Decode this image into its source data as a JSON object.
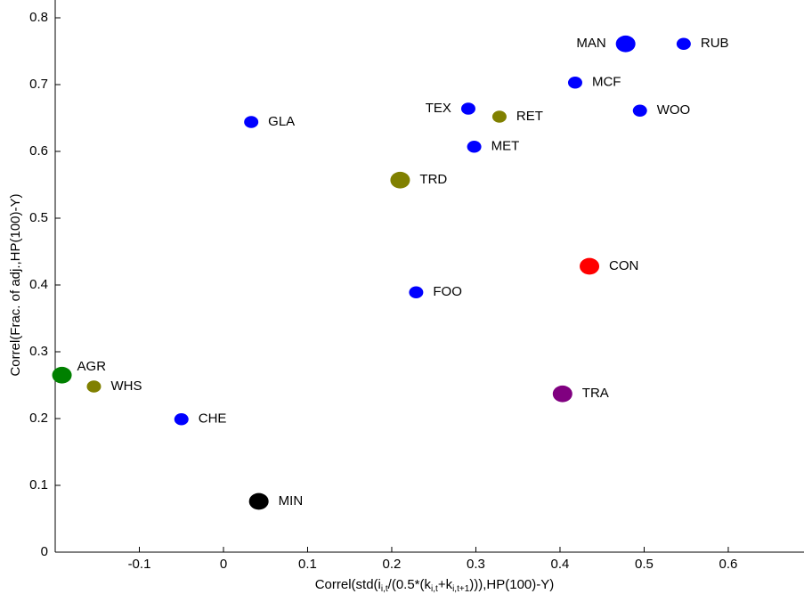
{
  "chart_data": {
    "type": "scatter",
    "ylabel": "Correl(Frac. of adj.,HP(100)-Y)",
    "xlabel_parts": [
      "Correl(std(i",
      "i,t",
      "/(0.5*(k",
      "i,t",
      "+k",
      "i,t+1",
      "))),HP(100)-Y)"
    ],
    "xlim": [
      -0.2,
      0.69
    ],
    "ylim": [
      0,
      0.8
    ],
    "xticks": [
      -0.1,
      0,
      0.1,
      0.2,
      0.3,
      0.4,
      0.5,
      0.6
    ],
    "yticks": [
      0,
      0.1,
      0.2,
      0.3,
      0.4,
      0.5,
      0.6,
      0.7,
      0.8
    ],
    "points": [
      {
        "label": "MAN",
        "x": 0.478,
        "y": 0.761,
        "color": "#0000ff",
        "size": 11
      },
      {
        "label": "RUB",
        "x": 0.547,
        "y": 0.761,
        "color": "#0000ff",
        "size": 8
      },
      {
        "label": "MCF",
        "x": 0.418,
        "y": 0.703,
        "color": "#0000ff",
        "size": 8
      },
      {
        "label": "WOO",
        "x": 0.495,
        "y": 0.661,
        "color": "#0000ff",
        "size": 8
      },
      {
        "label": "TEX",
        "x": 0.291,
        "y": 0.664,
        "color": "#0000ff",
        "size": 8
      },
      {
        "label": "RET",
        "x": 0.328,
        "y": 0.652,
        "color": "#808000",
        "size": 8
      },
      {
        "label": "MET",
        "x": 0.298,
        "y": 0.607,
        "color": "#0000ff",
        "size": 8
      },
      {
        "label": "GLA",
        "x": 0.033,
        "y": 0.644,
        "color": "#0000ff",
        "size": 8
      },
      {
        "label": "TRD",
        "x": 0.21,
        "y": 0.557,
        "color": "#808000",
        "size": 11
      },
      {
        "label": "CON",
        "x": 0.435,
        "y": 0.428,
        "color": "#ff0000",
        "size": 11
      },
      {
        "label": "FOO",
        "x": 0.229,
        "y": 0.389,
        "color": "#0000ff",
        "size": 8
      },
      {
        "label": "AGR",
        "x": -0.192,
        "y": 0.265,
        "color": "#008000",
        "size": 11
      },
      {
        "label": "WHS",
        "x": -0.154,
        "y": 0.248,
        "color": "#808000",
        "size": 8
      },
      {
        "label": "CHE",
        "x": -0.05,
        "y": 0.199,
        "color": "#0000ff",
        "size": 8
      },
      {
        "label": "TRA",
        "x": 0.403,
        "y": 0.237,
        "color": "#800080",
        "size": 11
      },
      {
        "label": "MIN",
        "x": 0.042,
        "y": 0.076,
        "color": "#000000",
        "size": 11
      }
    ]
  }
}
